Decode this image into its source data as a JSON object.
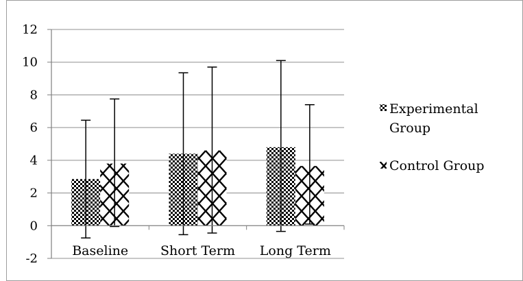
{
  "chart_data": {
    "type": "bar",
    "categories": [
      "Baseline",
      "Short Term",
      "Long Term"
    ],
    "series": [
      {
        "name": "Experimental Group",
        "values": [
          2.85,
          4.4,
          4.8
        ],
        "error_low": [
          -0.75,
          -0.55,
          -0.35
        ],
        "error_high": [
          6.45,
          9.35,
          10.1
        ],
        "pattern": "checkerboard"
      },
      {
        "name": "Control Group",
        "values": [
          3.8,
          4.6,
          3.65
        ],
        "error_low": [
          -0.05,
          -0.45,
          0.1
        ],
        "error_high": [
          7.75,
          9.7,
          7.4
        ],
        "pattern": "diamond-lattice"
      }
    ],
    "ylim": [
      -2,
      12
    ],
    "yticks": [
      12,
      10,
      8,
      6,
      4,
      2,
      0,
      -2
    ],
    "ytick_labels": [
      "12",
      "10",
      "8",
      "6",
      "4",
      "2",
      "0",
      "-2"
    ],
    "grid": true,
    "legend_position": "right",
    "legend": {
      "experimental_lines": [
        "Experimental",
        "Group"
      ],
      "control_lines": [
        "Control Group"
      ]
    },
    "colors": {
      "grid": "#a6a6a6",
      "axis": "#7f7f7f",
      "frame": "#9c9c9c",
      "bar_dark": "#000000",
      "bar_light": "#ffffff"
    },
    "title": "",
    "xlabel": "",
    "ylabel": ""
  }
}
